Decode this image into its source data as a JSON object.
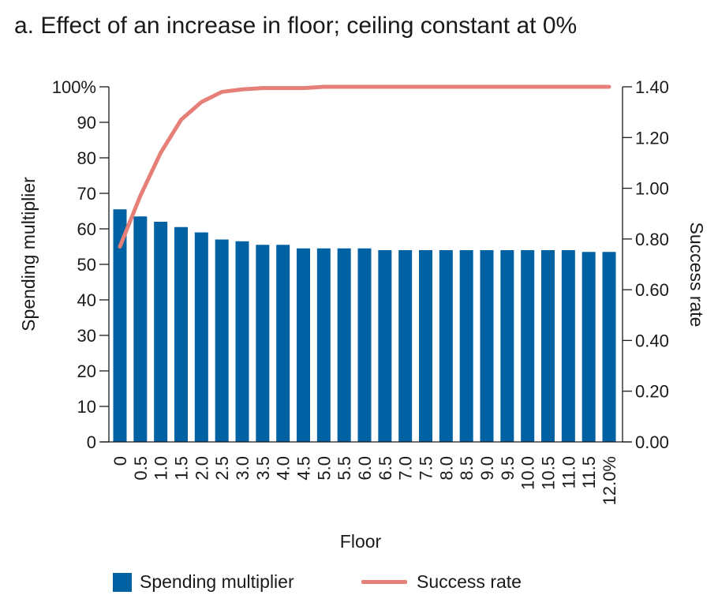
{
  "colors": {
    "bar": "#0062A3",
    "line": "#E57F77",
    "axis": "#1a1a1a"
  },
  "chart_data": {
    "type": "bar",
    "title": "a. Effect of an increase in floor; ceiling constant at 0%",
    "xlabel": "Floor",
    "ylabel": "Spending multiplier",
    "y2label": "Success rate",
    "categories": [
      "0",
      "0.5",
      "1.0",
      "1.5",
      "2.0",
      "2.5",
      "3.0",
      "3.5",
      "4.0",
      "4.5",
      "5.0",
      "5.5",
      "6.0",
      "6.5",
      "7.0",
      "7.5",
      "8.0",
      "8.5",
      "9.0",
      "9.5",
      "10.0",
      "10.5",
      "11.0",
      "11.5",
      "12.0%"
    ],
    "series": [
      {
        "name": "Spending multiplier",
        "axis": "left",
        "type": "bar",
        "values": [
          65.5,
          63.5,
          62,
          60.5,
          59,
          57,
          56.5,
          55.5,
          55.5,
          54.5,
          54.5,
          54.5,
          54.5,
          54,
          54,
          54,
          54,
          54,
          54,
          54,
          54,
          54,
          54,
          53.5,
          53.5
        ]
      },
      {
        "name": "Success rate",
        "axis": "right",
        "type": "line",
        "values": [
          0.77,
          0.97,
          1.14,
          1.27,
          1.34,
          1.38,
          1.39,
          1.395,
          1.395,
          1.395,
          1.4,
          1.4,
          1.4,
          1.4,
          1.4,
          1.4,
          1.4,
          1.4,
          1.4,
          1.4,
          1.4,
          1.4,
          1.4,
          1.4,
          1.4
        ]
      }
    ],
    "ylim": [
      0,
      100
    ],
    "y2lim": [
      0,
      1.4
    ],
    "yticks": [
      "0",
      "10",
      "20",
      "30",
      "40",
      "50",
      "60",
      "70",
      "80",
      "90",
      "100%"
    ],
    "y2ticks": [
      "0.00",
      "0.20",
      "0.40",
      "0.60",
      "0.80",
      "1.00",
      "1.20",
      "1.40"
    ],
    "grid": false,
    "legend_position": "bottom"
  },
  "legend": [
    {
      "label": "Spending multiplier",
      "kind": "bar"
    },
    {
      "label": "Success rate",
      "kind": "line"
    }
  ]
}
